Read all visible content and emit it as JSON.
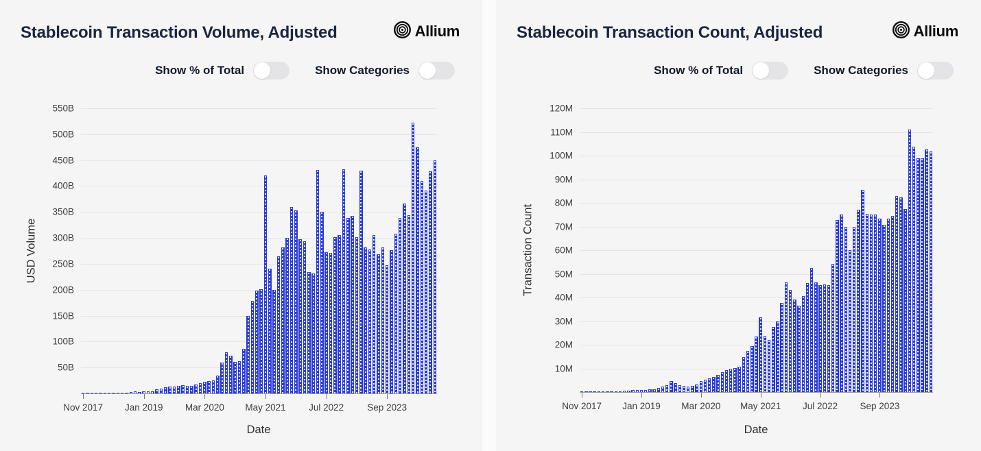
{
  "page": {
    "background": "#fbfbfb",
    "panel_background": "#f5f5f6",
    "accent_blue": "#2a3bd2"
  },
  "panels": [
    {
      "title": "Stablecoin Transaction Volume, Adjusted",
      "logo_text": "Allium",
      "toggles": [
        {
          "label": "Show % of Total",
          "state": "off"
        },
        {
          "label": "Show Categories",
          "state": "off"
        }
      ]
    },
    {
      "title": "Stablecoin Transaction Count, Adjusted",
      "logo_text": "Allium",
      "toggles": [
        {
          "label": "Show % of Total",
          "state": "off"
        },
        {
          "label": "Show Categories",
          "state": "off"
        }
      ]
    }
  ],
  "chart_data": [
    {
      "type": "bar",
      "title": "Stablecoin Transaction Volume, Adjusted",
      "xlabel": "Date",
      "ylabel": "USD Volume",
      "bar_color": "#2a3bd2",
      "grid": true,
      "legend": "none",
      "y_axis": {
        "max": 550,
        "unit": "B",
        "ticks": [
          50,
          100,
          150,
          200,
          250,
          300,
          350,
          400,
          450,
          500,
          550
        ]
      },
      "x_ticks": [
        {
          "label": "Nov 2017",
          "index": 0
        },
        {
          "label": "Jan 2019",
          "index": 14
        },
        {
          "label": "Mar 2020",
          "index": 28
        },
        {
          "label": "May 2021",
          "index": 42
        },
        {
          "label": "Jul 2022",
          "index": 56
        },
        {
          "label": "Sep 2023",
          "index": 70
        }
      ],
      "categories": [
        "Nov 2017",
        "Dec 2017",
        "Jan 2018",
        "Feb 2018",
        "Mar 2018",
        "Apr 2018",
        "May 2018",
        "Jun 2018",
        "Jul 2018",
        "Aug 2018",
        "Sep 2018",
        "Oct 2018",
        "Nov 2018",
        "Dec 2018",
        "Jan 2019",
        "Feb 2019",
        "Mar 2019",
        "Apr 2019",
        "May 2019",
        "Jun 2019",
        "Jul 2019",
        "Aug 2019",
        "Sep 2019",
        "Oct 2019",
        "Nov 2019",
        "Dec 2019",
        "Jan 2020",
        "Feb 2020",
        "Mar 2020",
        "Apr 2020",
        "May 2020",
        "Jun 2020",
        "Jul 2020",
        "Aug 2020",
        "Sep 2020",
        "Oct 2020",
        "Nov 2020",
        "Dec 2020",
        "Jan 2021",
        "Feb 2021",
        "Mar 2021",
        "Apr 2021",
        "May 2021",
        "Jun 2021",
        "Jul 2021",
        "Aug 2021",
        "Sep 2021",
        "Oct 2021",
        "Nov 2021",
        "Dec 2021",
        "Jan 2022",
        "Feb 2022",
        "Mar 2022",
        "Apr 2022",
        "May 2022",
        "Jun 2022",
        "Jul 2022",
        "Aug 2022",
        "Sep 2022",
        "Oct 2022",
        "Nov 2022",
        "Dec 2022",
        "Jan 2023",
        "Feb 2023",
        "Mar 2023",
        "Apr 2023",
        "May 2023",
        "Jun 2023",
        "Jul 2023",
        "Aug 2023",
        "Sep 2023",
        "Oct 2023",
        "Nov 2023",
        "Dec 2023",
        "Jan 2024",
        "Feb 2024",
        "Mar 2024",
        "Apr 2024",
        "May 2024",
        "Jun 2024",
        "Jul 2024",
        "Aug 2024"
      ],
      "values": [
        0.4,
        0.6,
        0.7,
        0.6,
        0.7,
        0.8,
        1,
        1,
        1.2,
        1.5,
        1.8,
        2.2,
        3.5,
        3.1,
        3.9,
        3.5,
        4.4,
        7.5,
        9.6,
        11.8,
        12.7,
        12.7,
        14,
        15.4,
        14.5,
        15,
        17.1,
        19.7,
        22.8,
        24,
        25.4,
        33.8,
        60.1,
        78.9,
        73.2,
        61,
        62.3,
        86,
        150,
        178,
        198,
        201,
        420,
        241,
        199,
        264,
        281,
        300,
        359,
        353,
        298,
        294,
        234,
        232,
        431,
        351,
        273,
        271,
        302,
        305,
        432,
        338,
        342,
        302,
        430,
        281,
        278,
        306,
        268,
        281,
        247,
        277,
        308,
        339,
        366,
        344,
        522,
        475,
        410,
        392,
        429,
        449
      ]
    },
    {
      "type": "bar",
      "title": "Stablecoin Transaction Count, Adjusted",
      "xlabel": "Date",
      "ylabel": "Transaction Count",
      "bar_color": "#2a3bd2",
      "grid": true,
      "legend": "none",
      "y_axis": {
        "max": 120,
        "unit": "M",
        "ticks": [
          10,
          20,
          30,
          40,
          50,
          60,
          70,
          80,
          90,
          100,
          110,
          120
        ]
      },
      "x_ticks": [
        {
          "label": "Nov 2017",
          "index": 0
        },
        {
          "label": "Jan 2019",
          "index": 14
        },
        {
          "label": "Mar 2020",
          "index": 28
        },
        {
          "label": "May 2021",
          "index": 42
        },
        {
          "label": "Jul 2022",
          "index": 56
        },
        {
          "label": "Sep 2023",
          "index": 70
        }
      ],
      "categories": [
        "Nov 2017",
        "Dec 2017",
        "Jan 2018",
        "Feb 2018",
        "Mar 2018",
        "Apr 2018",
        "May 2018",
        "Jun 2018",
        "Jul 2018",
        "Aug 2018",
        "Sep 2018",
        "Oct 2018",
        "Nov 2018",
        "Dec 2018",
        "Jan 2019",
        "Feb 2019",
        "Mar 2019",
        "Apr 2019",
        "May 2019",
        "Jun 2019",
        "Jul 2019",
        "Aug 2019",
        "Sep 2019",
        "Oct 2019",
        "Nov 2019",
        "Dec 2019",
        "Jan 2020",
        "Feb 2020",
        "Mar 2020",
        "Apr 2020",
        "May 2020",
        "Jun 2020",
        "Jul 2020",
        "Aug 2020",
        "Sep 2020",
        "Oct 2020",
        "Nov 2020",
        "Dec 2020",
        "Jan 2021",
        "Feb 2021",
        "Mar 2021",
        "Apr 2021",
        "May 2021",
        "Jun 2021",
        "Jul 2021",
        "Aug 2021",
        "Sep 2021",
        "Oct 2021",
        "Nov 2021",
        "Dec 2021",
        "Jan 2022",
        "Feb 2022",
        "Mar 2022",
        "Apr 2022",
        "May 2022",
        "Jun 2022",
        "Jul 2022",
        "Aug 2022",
        "Sep 2022",
        "Oct 2022",
        "Nov 2022",
        "Dec 2022",
        "Jan 2023",
        "Feb 2023",
        "Mar 2023",
        "Apr 2023",
        "May 2023",
        "Jun 2023",
        "Jul 2023",
        "Aug 2023",
        "Sep 2023",
        "Oct 2023",
        "Nov 2023",
        "Dec 2023",
        "Jan 2024",
        "Feb 2024",
        "Mar 2024",
        "Apr 2024",
        "May 2024",
        "Jun 2024",
        "Jul 2024",
        "Aug 2024",
        "Sep 2024"
      ],
      "values": [
        0.05,
        0.08,
        0.1,
        0.1,
        0.12,
        0.15,
        0.2,
        0.25,
        0.3,
        0.4,
        0.5,
        0.6,
        0.8,
        0.8,
        0.9,
        1,
        1.1,
        1.3,
        1.6,
        2.2,
        2.8,
        4.7,
        3.8,
        2.8,
        2.6,
        2.3,
        2.5,
        3.2,
        4.7,
        5.2,
        5.7,
        6.3,
        7.2,
        8.5,
        9.3,
        9.8,
        10.1,
        10.8,
        14.9,
        17.5,
        19.5,
        23.5,
        31.5,
        23.8,
        22.1,
        27.5,
        30,
        37.6,
        46.3,
        43.2,
        39,
        36.5,
        40.5,
        46,
        52.5,
        46.5,
        45.3,
        45.6,
        45.2,
        54.3,
        72.7,
        75.1,
        69.8,
        60.1,
        70,
        77.2,
        85.6,
        75.3,
        75.1,
        75.1,
        73.4,
        70.7,
        73.2,
        74.6,
        82.8,
        82.4,
        77.5,
        111,
        103.7,
        98.8,
        98.8,
        102.5,
        101.7
      ]
    }
  ]
}
